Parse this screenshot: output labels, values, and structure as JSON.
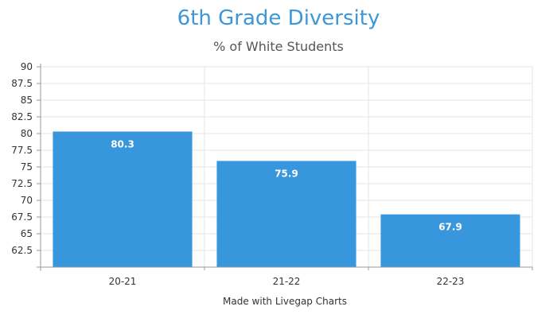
{
  "chart_data": {
    "type": "bar",
    "title": "6th Grade Diversity",
    "subtitle": "% of White Students",
    "xlabel": "Made with Livegap Charts",
    "ylabel": "",
    "categories": [
      "20-21",
      "21-22",
      "22-23"
    ],
    "values": [
      80.3,
      75.9,
      67.9
    ],
    "data_labels": [
      "80.3",
      "75.9",
      "67.9"
    ],
    "ylim": [
      60,
      90
    ],
    "yticks": [
      62.5,
      65,
      67.5,
      70,
      72.5,
      75,
      77.5,
      80,
      82.5,
      85,
      87.5,
      90
    ],
    "ytick_labels": [
      "62.5",
      "65",
      "67.5",
      "70",
      "72.5",
      "75",
      "77.5",
      "80",
      "82.5",
      "85",
      "87.5",
      "90"
    ],
    "grid": true,
    "legend": "none",
    "bar_color": "#3897dc"
  }
}
